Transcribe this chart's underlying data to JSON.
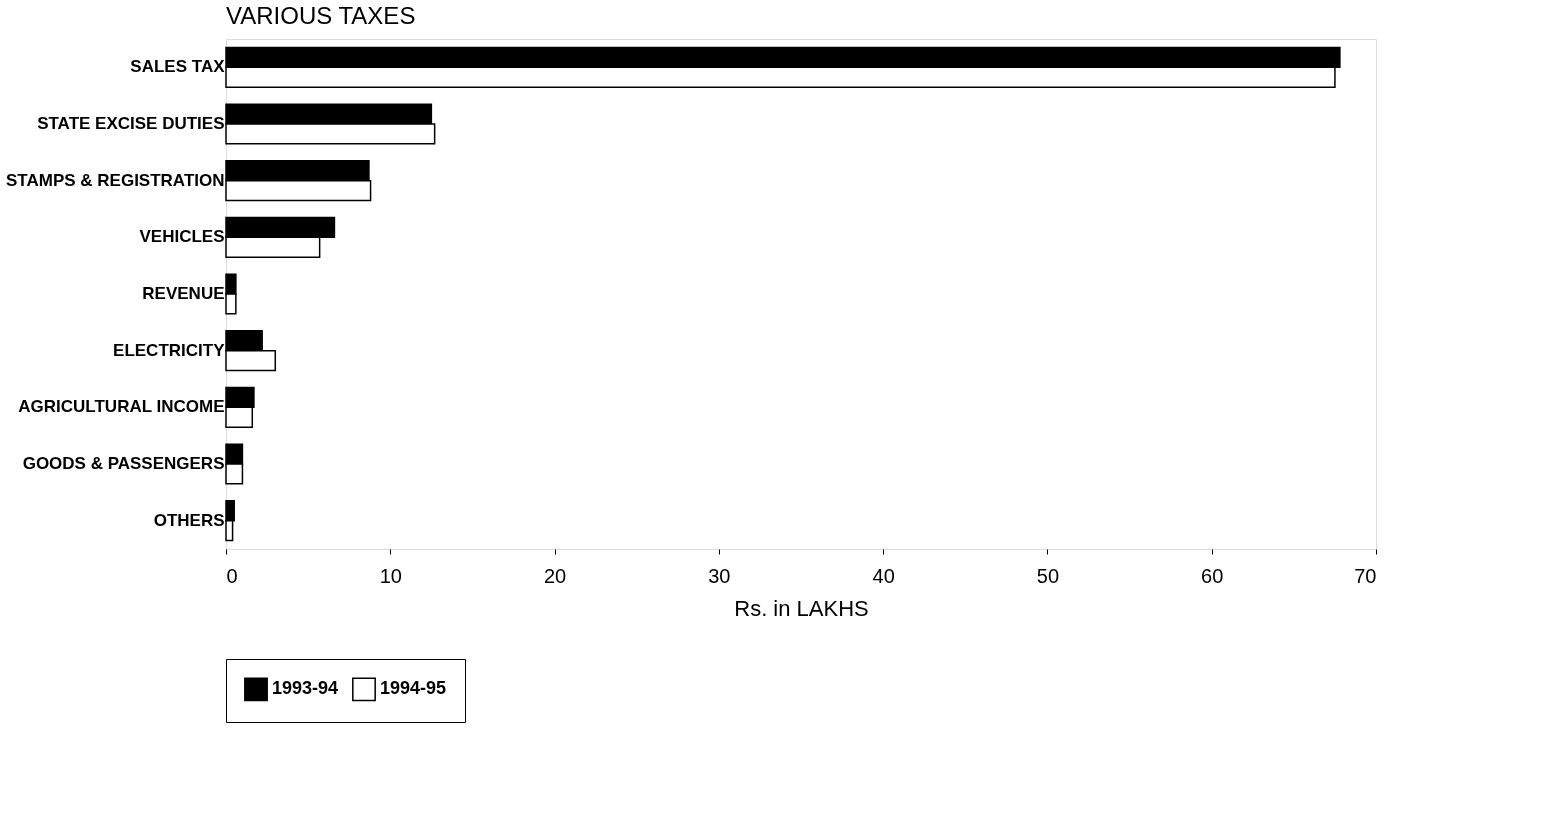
{
  "chart_data": {
    "type": "bar",
    "orientation": "horizontal",
    "title": "VARIOUS TAXES",
    "xlabel": "Rs.  in  LAKHS",
    "categories": [
      "SALES TAX",
      "STATE EXCISE DUTIES",
      "STAMPS & REGISTRATION",
      "VEHICLES",
      "REVENUE",
      "ELECTRICITY",
      "AGRICULTURAL INCOME",
      "GOODS & PASSENGERS",
      "OTHERS"
    ],
    "series": [
      {
        "name": "1993-94",
        "color": "#000000",
        "values": [
          67.8,
          12.5,
          8.7,
          6.6,
          0.6,
          2.2,
          1.7,
          1.0,
          0.5
        ]
      },
      {
        "name": "1994-95",
        "color": "#ffffff",
        "values": [
          67.5,
          12.7,
          8.8,
          5.7,
          0.6,
          3.0,
          1.6,
          1.0,
          0.4
        ]
      }
    ],
    "xlim": [
      0,
      70
    ],
    "xticks": [
      0,
      10,
      20,
      30,
      40,
      50,
      60,
      70
    ],
    "grid": false,
    "legend": "bottom"
  }
}
